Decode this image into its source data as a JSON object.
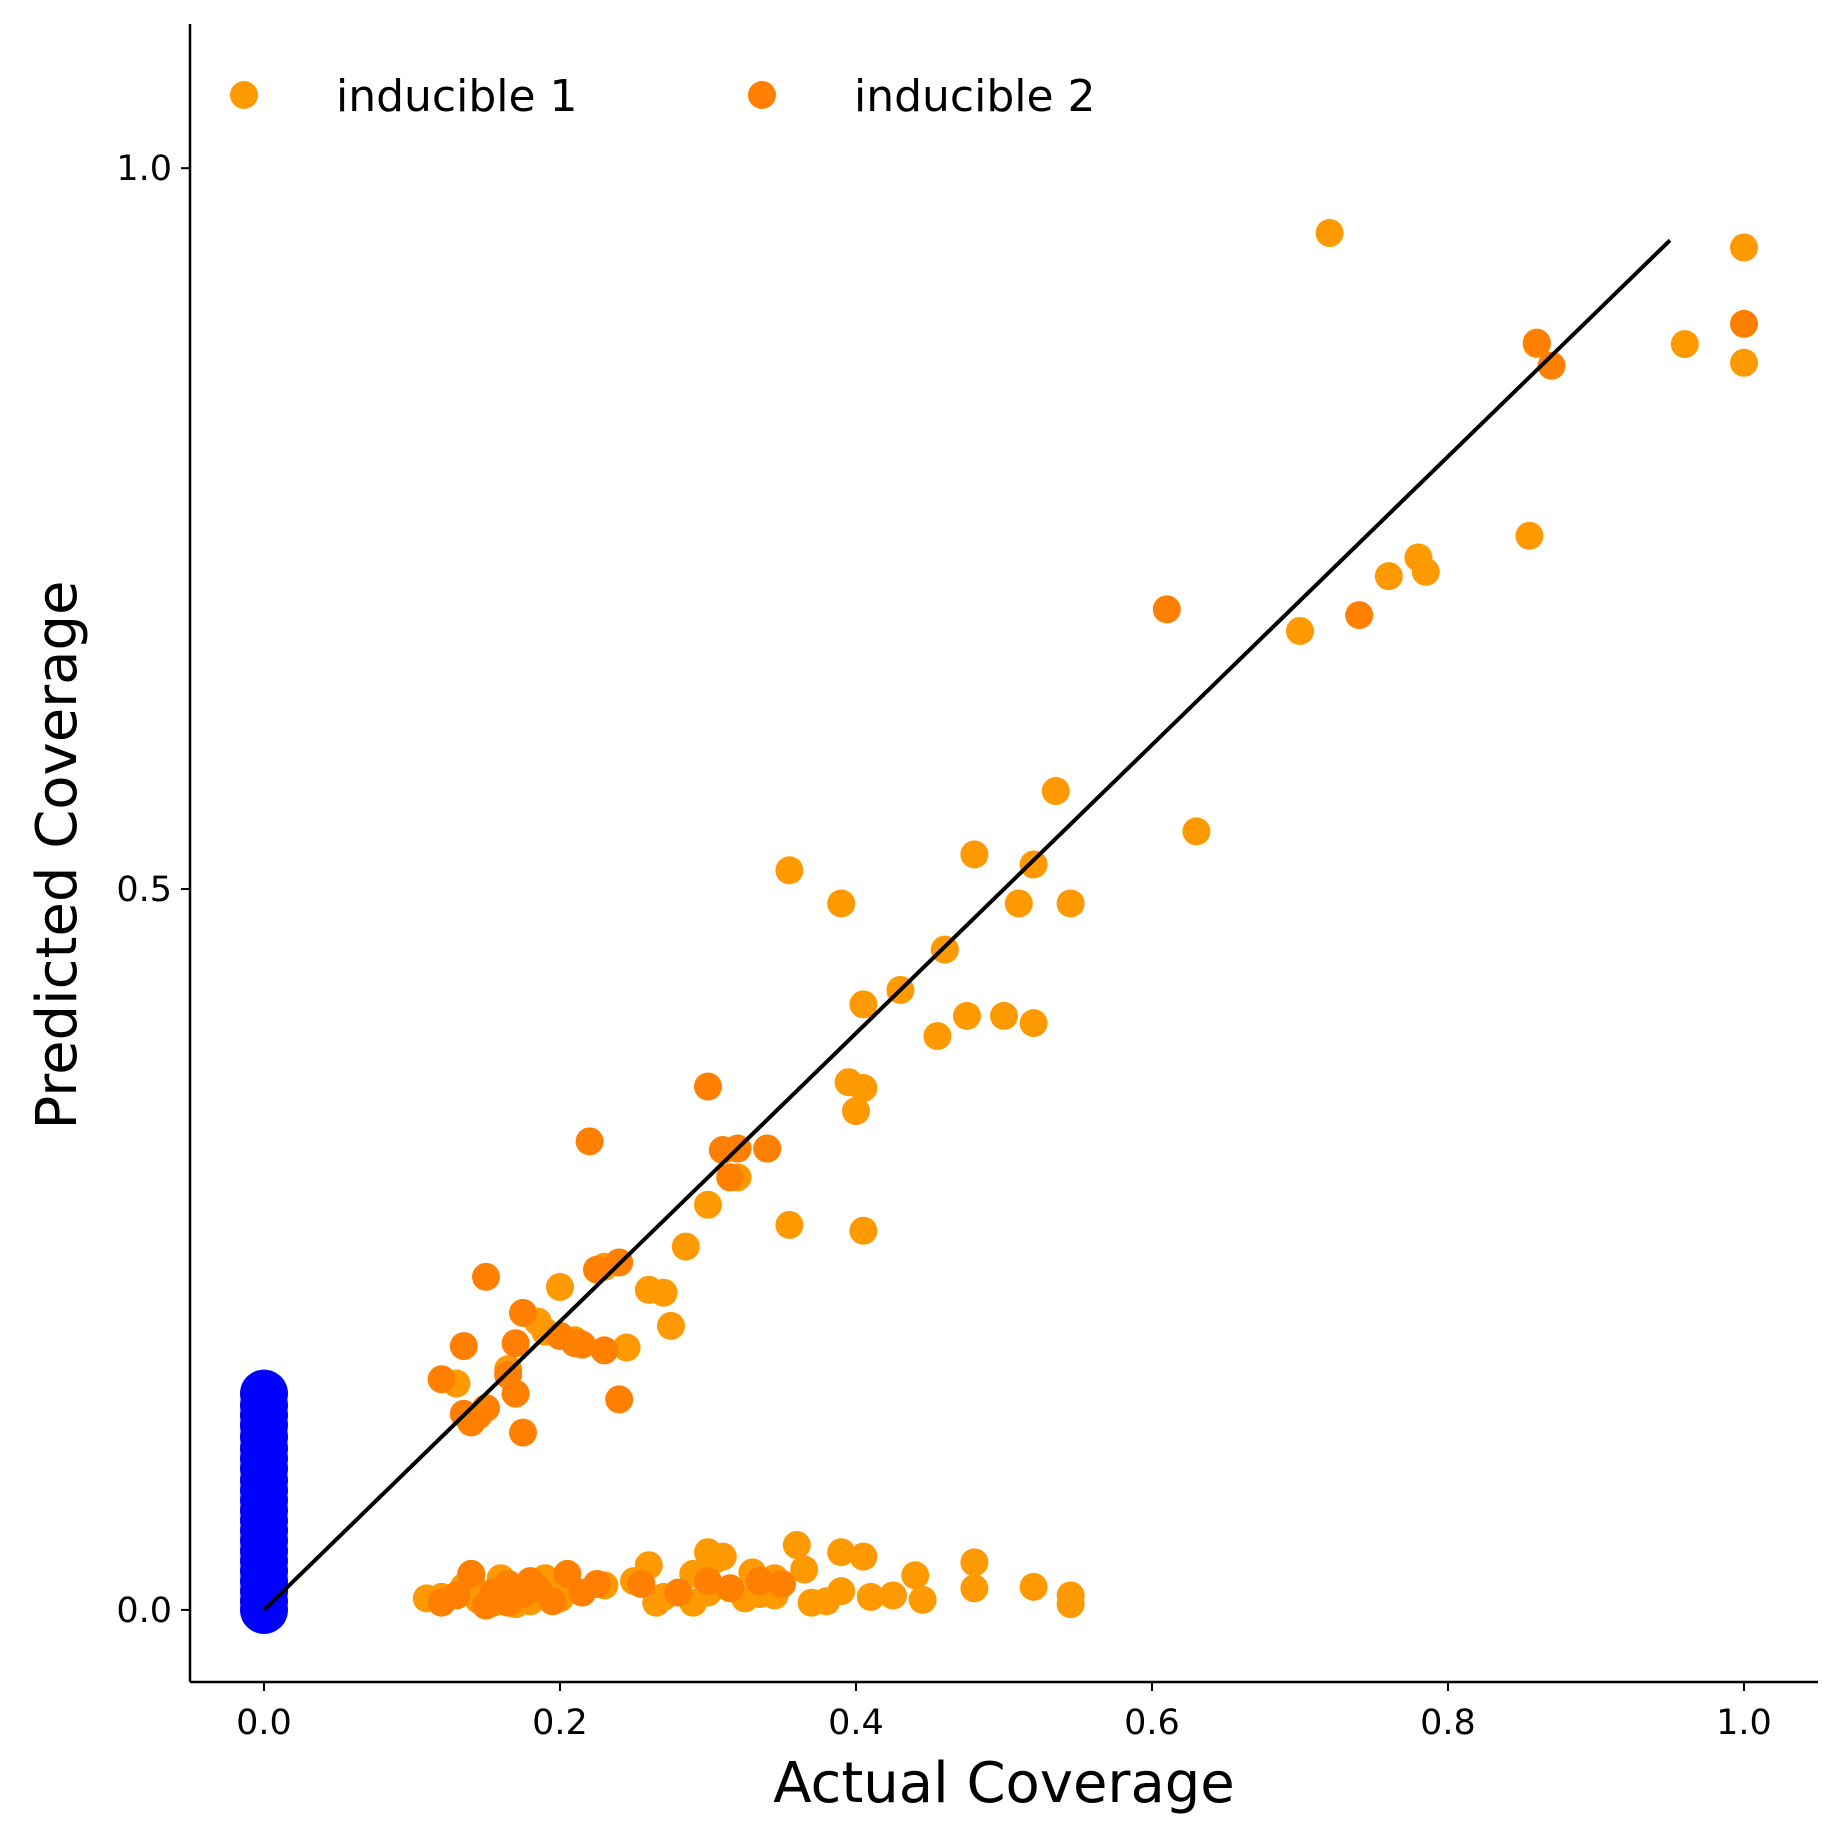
{
  "chart_data": {
    "type": "scatter",
    "title": "",
    "xlabel": "Actual Coverage",
    "ylabel": "Predicted Coverage",
    "xlim": [
      -0.05,
      1.05
    ],
    "ylim": [
      -0.05,
      1.1
    ],
    "xticks": [
      0.0,
      0.2,
      0.4,
      0.6,
      0.8,
      1.0
    ],
    "xtick_labels": [
      "0.0",
      "0.2",
      "0.4",
      "0.6",
      "0.8",
      "1.0"
    ],
    "yticks": [
      0.0,
      0.5,
      1.0
    ],
    "ytick_labels": [
      "0.0",
      "0.5",
      "1.0"
    ],
    "grid": false,
    "legend_position": "top-left",
    "reference_line": {
      "x": [
        0.0,
        0.95
      ],
      "y": [
        0.0,
        0.95
      ],
      "color": "#000000"
    },
    "series": [
      {
        "name": "inducible 1",
        "color": "#FF9900",
        "points": [
          [
            0.72,
            0.955
          ],
          [
            1.0,
            0.945
          ],
          [
            0.96,
            0.878
          ],
          [
            1.0,
            0.865
          ],
          [
            0.86,
            0.878
          ],
          [
            0.855,
            0.745
          ],
          [
            0.78,
            0.73
          ],
          [
            0.76,
            0.717
          ],
          [
            0.785,
            0.72
          ],
          [
            0.7,
            0.679
          ],
          [
            0.535,
            0.568
          ],
          [
            0.63,
            0.54
          ],
          [
            0.355,
            0.513
          ],
          [
            0.39,
            0.49
          ],
          [
            0.48,
            0.524
          ],
          [
            0.52,
            0.517
          ],
          [
            0.51,
            0.49
          ],
          [
            0.545,
            0.49
          ],
          [
            0.46,
            0.458
          ],
          [
            0.43,
            0.43
          ],
          [
            0.405,
            0.42
          ],
          [
            0.455,
            0.398
          ],
          [
            0.475,
            0.412
          ],
          [
            0.5,
            0.412
          ],
          [
            0.52,
            0.407
          ],
          [
            0.395,
            0.366
          ],
          [
            0.405,
            0.362
          ],
          [
            0.4,
            0.346
          ],
          [
            0.34,
            0.32
          ],
          [
            0.32,
            0.3
          ],
          [
            0.3,
            0.281
          ],
          [
            0.355,
            0.267
          ],
          [
            0.405,
            0.263
          ],
          [
            0.285,
            0.252
          ],
          [
            0.23,
            0.238
          ],
          [
            0.26,
            0.222
          ],
          [
            0.27,
            0.22
          ],
          [
            0.2,
            0.224
          ],
          [
            0.275,
            0.197
          ],
          [
            0.245,
            0.182
          ],
          [
            0.21,
            0.187
          ],
          [
            0.185,
            0.2
          ],
          [
            0.19,
            0.193
          ],
          [
            0.13,
            0.157
          ],
          [
            0.165,
            0.167
          ],
          [
            0.2,
            0.19
          ],
          [
            0.39,
            0.04
          ],
          [
            0.405,
            0.037
          ],
          [
            0.36,
            0.045
          ],
          [
            0.48,
            0.033
          ],
          [
            0.52,
            0.016
          ],
          [
            0.545,
            0.01
          ],
          [
            0.545,
            0.004
          ],
          [
            0.48,
            0.015
          ],
          [
            0.44,
            0.024
          ],
          [
            0.33,
            0.026
          ],
          [
            0.305,
            0.035
          ],
          [
            0.3,
            0.04
          ],
          [
            0.31,
            0.037
          ],
          [
            0.26,
            0.031
          ],
          [
            0.365,
            0.028
          ],
          [
            0.345,
            0.022
          ],
          [
            0.29,
            0.025
          ],
          [
            0.25,
            0.02
          ],
          [
            0.23,
            0.017
          ],
          [
            0.2,
            0.016
          ],
          [
            0.19,
            0.022
          ],
          [
            0.16,
            0.022
          ],
          [
            0.14,
            0.02
          ],
          [
            0.135,
            0.016
          ],
          [
            0.12,
            0.009
          ],
          [
            0.11,
            0.008
          ],
          [
            0.145,
            0.007
          ],
          [
            0.155,
            0.005
          ],
          [
            0.17,
            0.004
          ],
          [
            0.18,
            0.006
          ],
          [
            0.2,
            0.008
          ],
          [
            0.265,
            0.005
          ],
          [
            0.27,
            0.009
          ],
          [
            0.29,
            0.005
          ],
          [
            0.325,
            0.008
          ],
          [
            0.335,
            0.011
          ],
          [
            0.345,
            0.01
          ],
          [
            0.37,
            0.005
          ],
          [
            0.38,
            0.006
          ],
          [
            0.39,
            0.013
          ],
          [
            0.41,
            0.009
          ],
          [
            0.425,
            0.01
          ],
          [
            0.445,
            0.007
          ],
          [
            0.3,
            0.012
          ]
        ]
      },
      {
        "name": "inducible 2",
        "color": "#FF8000",
        "points": [
          [
            1.0,
            0.892
          ],
          [
            0.87,
            0.863
          ],
          [
            0.86,
            0.879
          ],
          [
            0.61,
            0.694
          ],
          [
            0.74,
            0.69
          ],
          [
            0.3,
            0.363
          ],
          [
            0.22,
            0.325
          ],
          [
            0.32,
            0.32
          ],
          [
            0.34,
            0.32
          ],
          [
            0.31,
            0.319
          ],
          [
            0.315,
            0.3
          ],
          [
            0.24,
            0.241
          ],
          [
            0.225,
            0.236
          ],
          [
            0.15,
            0.231
          ],
          [
            0.175,
            0.206
          ],
          [
            0.135,
            0.183
          ],
          [
            0.12,
            0.16
          ],
          [
            0.215,
            0.184
          ],
          [
            0.23,
            0.18
          ],
          [
            0.14,
            0.13
          ],
          [
            0.17,
            0.185
          ],
          [
            0.21,
            0.185
          ],
          [
            0.24,
            0.146
          ],
          [
            0.175,
            0.123
          ],
          [
            0.135,
            0.136
          ],
          [
            0.145,
            0.135
          ],
          [
            0.165,
            0.163
          ],
          [
            0.2,
            0.19
          ],
          [
            0.15,
            0.14
          ],
          [
            0.17,
            0.15
          ],
          [
            0.14,
            0.025
          ],
          [
            0.155,
            0.012
          ],
          [
            0.165,
            0.018
          ],
          [
            0.18,
            0.02
          ],
          [
            0.205,
            0.025
          ],
          [
            0.215,
            0.012
          ],
          [
            0.225,
            0.018
          ],
          [
            0.195,
            0.006
          ],
          [
            0.15,
            0.003
          ],
          [
            0.175,
            0.011
          ],
          [
            0.255,
            0.018
          ],
          [
            0.28,
            0.012
          ],
          [
            0.3,
            0.02
          ],
          [
            0.315,
            0.015
          ],
          [
            0.335,
            0.02
          ],
          [
            0.35,
            0.018
          ],
          [
            0.13,
            0.01
          ],
          [
            0.12,
            0.005
          ],
          [
            0.165,
            0.005
          ],
          [
            0.185,
            0.015
          ]
        ]
      },
      {
        "name": "",
        "color": "#0000FF",
        "points": [
          [
            0.0,
            0.15
          ],
          [
            0.0,
            0.142
          ],
          [
            0.0,
            0.135
          ],
          [
            0.0,
            0.128
          ],
          [
            0.0,
            0.12
          ],
          [
            0.0,
            0.112
          ],
          [
            0.0,
            0.105
          ],
          [
            0.0,
            0.098
          ],
          [
            0.0,
            0.09
          ],
          [
            0.0,
            0.083
          ],
          [
            0.0,
            0.076
          ],
          [
            0.0,
            0.069
          ],
          [
            0.0,
            0.062
          ],
          [
            0.0,
            0.055
          ],
          [
            0.0,
            0.048
          ],
          [
            0.0,
            0.041
          ],
          [
            0.0,
            0.034
          ],
          [
            0.0,
            0.027
          ],
          [
            0.0,
            0.02
          ],
          [
            0.0,
            0.013
          ],
          [
            0.0,
            0.006
          ],
          [
            0.0,
            0.0
          ]
        ]
      }
    ]
  }
}
